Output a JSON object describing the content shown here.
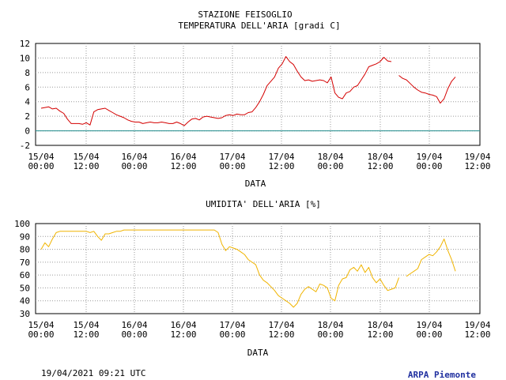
{
  "footer": {
    "timestamp": "19/04/2021 09:21 UTC",
    "brand": "ARPA Piemonte"
  },
  "chart_data": [
    {
      "type": "line",
      "title": "STAZIONE FEISOGLIO",
      "subtitle": "TEMPERATURA DELL'ARIA [gradi C]",
      "xlabel": "DATA",
      "ylabel": "",
      "ylim": [
        -2,
        12
      ],
      "yticks": [
        -2,
        0,
        2,
        4,
        6,
        8,
        10,
        12
      ],
      "xlim": [
        "15/04 00:00",
        "19/04 12:00"
      ],
      "xticks": [
        "15/04 00:00",
        "15/04 12:00",
        "16/04 00:00",
        "16/04 12:00",
        "17/04 00:00",
        "17/04 12:00",
        "18/04 00:00",
        "18/04 12:00",
        "19/04 00:00",
        "19/04 12:00"
      ],
      "grid": true,
      "reference_line": {
        "y": 0,
        "color": "#1f8c8c"
      },
      "series": [
        {
          "color": "#d40000",
          "x": [
            0,
            1,
            2,
            3,
            4,
            5,
            6,
            7,
            8,
            9,
            10,
            11,
            12,
            13,
            14,
            15,
            16,
            17,
            18,
            19,
            20,
            21,
            22,
            23,
            24,
            25,
            26,
            27,
            28,
            29,
            30,
            31,
            32,
            33,
            34,
            35,
            36,
            37,
            38,
            39,
            40,
            41,
            42,
            43,
            44,
            45,
            46,
            47,
            48,
            49,
            50,
            51,
            52,
            53,
            54,
            55,
            56,
            57,
            58,
            59,
            60,
            61,
            62,
            63,
            64,
            65,
            66,
            67,
            68,
            69,
            70,
            71,
            72,
            73,
            74,
            75,
            76,
            77,
            78,
            79,
            80,
            81,
            82,
            83,
            84,
            85,
            86,
            87,
            88,
            89,
            90,
            91,
            92,
            93,
            94,
            95,
            96,
            97,
            98,
            99,
            100,
            101,
            102,
            103,
            104,
            105,
            106,
            107,
            108,
            109,
            110
          ],
          "y": [
            3.1,
            3.2,
            3.3,
            3.0,
            3.1,
            2.7,
            2.4,
            1.6,
            1.0,
            1.0,
            1.0,
            0.9,
            1.1,
            0.8,
            2.6,
            2.9,
            3.0,
            3.1,
            2.8,
            2.5,
            2.2,
            2.0,
            1.8,
            1.5,
            1.3,
            1.2,
            1.2,
            1.0,
            1.1,
            1.2,
            1.1,
            1.1,
            1.2,
            1.1,
            1.0,
            1.0,
            1.2,
            1.0,
            0.7,
            1.2,
            1.6,
            1.7,
            1.5,
            1.9,
            2.0,
            1.9,
            1.8,
            1.7,
            1.8,
            2.1,
            2.2,
            2.1,
            2.3,
            2.2,
            2.2,
            2.5,
            2.6,
            3.2,
            4.0,
            5.0,
            6.2,
            6.8,
            7.4,
            8.6,
            9.2,
            10.2,
            9.5,
            9.1,
            8.2,
            7.4,
            6.9,
            7.0,
            6.8,
            6.9,
            7.0,
            6.9,
            6.6,
            7.4,
            5.2,
            4.6,
            4.4,
            5.2,
            5.4,
            6.0,
            6.2,
            7.0,
            7.8,
            8.8,
            9.0,
            9.2,
            9.5,
            10.1,
            9.6,
            9.5,
            null,
            7.6,
            7.2,
            7.0,
            6.5,
            6.0,
            5.6,
            5.3,
            5.2,
            5.0,
            4.9,
            4.7,
            3.8,
            4.4,
            5.8,
            6.8,
            7.4
          ]
        }
      ]
    },
    {
      "type": "line",
      "title": "UMIDITA' DELL'ARIA [%]",
      "xlabel": "DATA",
      "ylabel": "",
      "ylim": [
        30,
        100
      ],
      "yticks": [
        30,
        40,
        50,
        60,
        70,
        80,
        90,
        100
      ],
      "xlim": [
        "15/04 00:00",
        "19/04 12:00"
      ],
      "xticks": [
        "15/04 00:00",
        "15/04 12:00",
        "16/04 00:00",
        "16/04 12:00",
        "17/04 00:00",
        "17/04 12:00",
        "18/04 00:00",
        "18/04 12:00",
        "19/04 00:00",
        "19/04 12:00"
      ],
      "grid": true,
      "series": [
        {
          "color": "#f0b400",
          "x": [
            0,
            1,
            2,
            3,
            4,
            5,
            6,
            7,
            8,
            9,
            10,
            11,
            12,
            13,
            14,
            15,
            16,
            17,
            18,
            19,
            20,
            21,
            22,
            23,
            24,
            25,
            26,
            27,
            28,
            29,
            30,
            31,
            32,
            33,
            34,
            35,
            36,
            37,
            38,
            39,
            40,
            41,
            42,
            43,
            44,
            45,
            46,
            47,
            48,
            49,
            50,
            51,
            52,
            53,
            54,
            55,
            56,
            57,
            58,
            59,
            60,
            61,
            62,
            63,
            64,
            65,
            66,
            67,
            68,
            69,
            70,
            71,
            72,
            73,
            74,
            75,
            76,
            77,
            78,
            79,
            80,
            81,
            82,
            83,
            84,
            85,
            86,
            87,
            88,
            89,
            90,
            91,
            92,
            93,
            94,
            95,
            96,
            97,
            98,
            99,
            100,
            101,
            102,
            103,
            104,
            105,
            106,
            107,
            108,
            109,
            110
          ],
          "y": [
            80,
            85,
            82,
            88,
            93,
            94,
            94,
            94,
            94,
            94,
            94,
            94,
            94,
            93,
            94,
            90,
            87,
            92,
            92,
            93,
            94,
            94,
            95,
            95,
            95,
            95,
            95,
            95,
            95,
            95,
            95,
            95,
            95,
            95,
            95,
            95,
            95,
            95,
            95,
            95,
            95,
            95,
            95,
            95,
            95,
            95,
            95,
            93,
            84,
            79,
            82,
            81,
            80,
            78,
            76,
            72,
            70,
            68,
            60,
            56,
            54,
            51,
            48,
            44,
            42,
            40,
            38,
            35,
            38,
            45,
            49,
            51,
            49,
            47,
            53,
            52,
            50,
            42,
            40,
            52,
            57,
            58,
            64,
            66,
            63,
            68,
            62,
            66,
            58,
            54,
            57,
            52,
            48,
            49,
            50,
            58,
            null,
            59,
            61,
            63,
            65,
            72,
            74,
            76,
            75,
            78,
            82,
            88,
            79,
            72,
            63
          ]
        }
      ]
    }
  ]
}
